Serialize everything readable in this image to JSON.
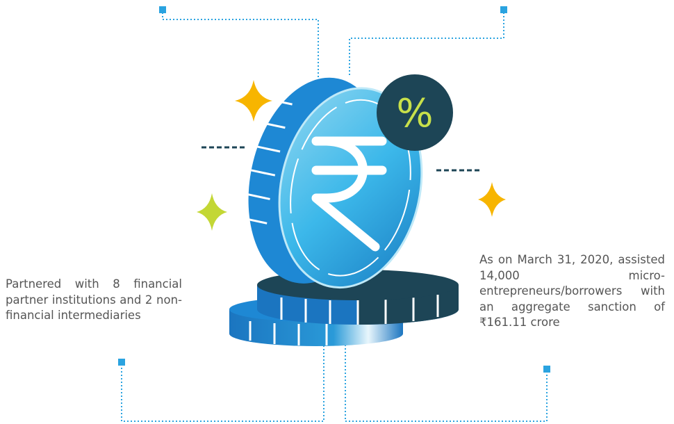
{
  "badge": {
    "symbol": "%"
  },
  "left_note": {
    "text": "Partnered with 8 financial partner institutions and 2 non-financial intermediaries"
  },
  "right_note": {
    "text": "As on March 31, 2020, assisted 14,000 micro-entrepreneurs/borrowers with an aggregate sanction of ₹161.11 crore"
  }
}
